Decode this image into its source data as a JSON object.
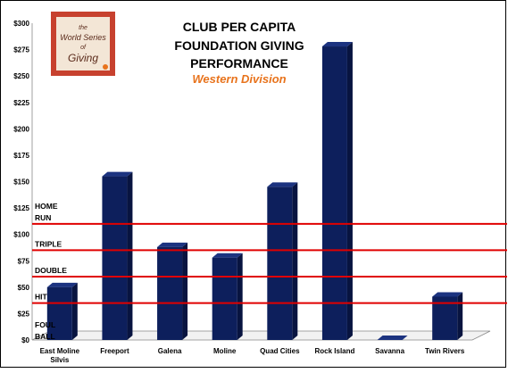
{
  "chart_data": {
    "type": "bar",
    "title_lines": [
      "CLUB PER CAPITA",
      "FOUNDATION GIVING",
      "PERFORMANCE"
    ],
    "subtitle": "Western Division",
    "categories": [
      "East Moline\nSilvis",
      "Freeport",
      "Galena",
      "Moline",
      "Quad Cities",
      "Rock Island",
      "Savanna",
      "Twin Rivers"
    ],
    "values": [
      50,
      155,
      88,
      78,
      145,
      278,
      0,
      41
    ],
    "ylim": [
      0,
      300
    ],
    "yticks": [
      "$0",
      "$25",
      "$50",
      "$75",
      "$100",
      "$125",
      "$150",
      "$175",
      "$200",
      "$225",
      "$250",
      "$275",
      "$300"
    ],
    "bar_color": "#0d1f5c",
    "reference_lines": [
      {
        "label": "FOUL\nBALL",
        "value": null
      },
      {
        "label": "HIT",
        "value": 35
      },
      {
        "label": "DOUBLE",
        "value": 60
      },
      {
        "label": "TRIPLE",
        "value": 85
      },
      {
        "label": "HOME\nRUN",
        "value": 110
      }
    ],
    "reference_line_color": "#e00000",
    "subtitle_color": "#e8731c"
  },
  "logo": {
    "text_lines": [
      "the",
      "World Series",
      "of",
      "Giving"
    ],
    "background": "#c7412e"
  }
}
